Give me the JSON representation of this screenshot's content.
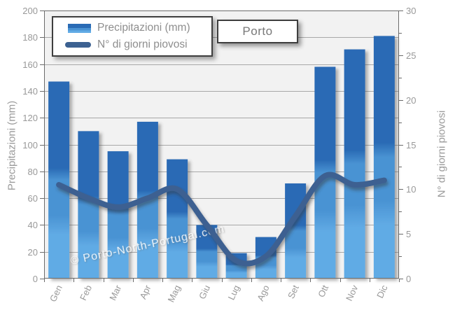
{
  "chart_data": {
    "type": "bar",
    "title": "Porto",
    "categories": [
      "Gen",
      "Feb",
      "Mar",
      "Apr",
      "Mag",
      "Giu",
      "Lug",
      "Ago",
      "Set",
      "Ott",
      "Nov",
      "Dic"
    ],
    "series": [
      {
        "name": "Precipitazioni (mm)",
        "type": "bar",
        "axis": "left",
        "values": [
          147,
          110,
          95,
          117,
          89,
          40,
          19,
          31,
          71,
          158,
          171,
          181
        ]
      },
      {
        "name": "N° di giorni piovosi",
        "type": "line",
        "axis": "right",
        "values": [
          10.5,
          9,
          8,
          9,
          10,
          6,
          2,
          2.5,
          7,
          11.5,
          10.5,
          11
        ]
      }
    ],
    "left_axis": {
      "label": "Precipitazioni (mm)",
      "min": 0,
      "max": 200,
      "tick_step": 20
    },
    "right_axis": {
      "label": "N° di giorni piovosi",
      "min": 0,
      "max": 30,
      "tick_step": 5,
      "minor_tick_step": 2.5
    },
    "legend_position": "top-left",
    "grid": true,
    "colors": {
      "bar_dark": "#2a6bb5",
      "bar_mid": "#4a93d3",
      "bar_light": "#61abe5",
      "line": "#3c6191",
      "grid": "#a8a8a8",
      "frame": "#6b6b6b",
      "tick_text": "#999999",
      "plot_bg": "#f2f2f2"
    }
  },
  "watermark": {
    "text": "© Porto-North-Portugal.com"
  }
}
